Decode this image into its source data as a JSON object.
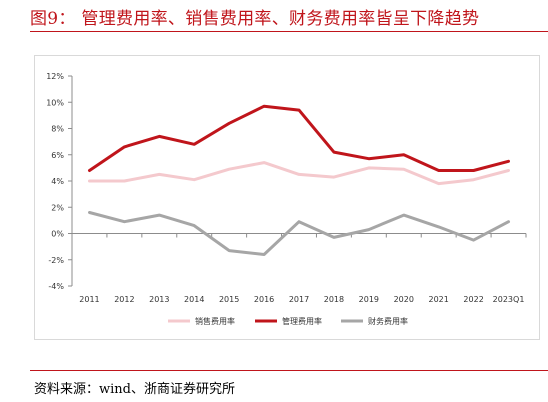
{
  "header": {
    "title": "图9：  管理费用率、销售费用率、财务费用率皆呈下降趋势"
  },
  "footer": {
    "source": "资料来源：wind、浙商证券研究所"
  },
  "colors": {
    "accent": "#c0151b",
    "sales": "#f4c9cd",
    "admin": "#c0151b",
    "finance": "#a6a6a6"
  },
  "chart_data": {
    "type": "line",
    "title": "",
    "xlabel": "",
    "ylabel": "",
    "categories": [
      "2011",
      "2012",
      "2013",
      "2014",
      "2015",
      "2016",
      "2017",
      "2018",
      "2019",
      "2020",
      "2021",
      "2022",
      "2023Q1"
    ],
    "ylim": [
      -4,
      12
    ],
    "yticks": [
      -4,
      -2,
      0,
      2,
      4,
      6,
      8,
      10,
      12
    ],
    "ytick_labels": [
      "-4%",
      "-2%",
      "0%",
      "2%",
      "4%",
      "6%",
      "8%",
      "10%",
      "12%"
    ],
    "grid": false,
    "legend_position": "bottom",
    "series": [
      {
        "name": "销售费用率",
        "color": "#f4c9cd",
        "values": [
          4.0,
          4.0,
          4.5,
          4.1,
          4.9,
          5.4,
          4.5,
          4.3,
          5.0,
          4.9,
          3.8,
          4.1,
          4.8
        ]
      },
      {
        "name": "管理费用率",
        "color": "#c0151b",
        "values": [
          4.8,
          6.6,
          7.4,
          6.8,
          8.4,
          9.7,
          9.4,
          6.2,
          5.7,
          6.0,
          4.8,
          4.8,
          5.5
        ]
      },
      {
        "name": "财务费用率",
        "color": "#a6a6a6",
        "values": [
          1.6,
          0.9,
          1.4,
          0.6,
          -1.3,
          -1.6,
          0.9,
          -0.3,
          0.3,
          1.4,
          0.5,
          -0.5,
          0.9
        ]
      }
    ]
  }
}
